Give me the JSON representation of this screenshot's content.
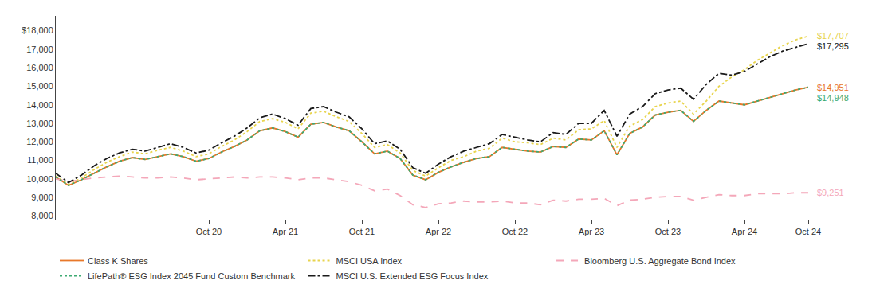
{
  "chart_data": {
    "type": "line",
    "categories": [
      null,
      null,
      null,
      null,
      null,
      null,
      null,
      null,
      null,
      null,
      null,
      null,
      "Oct 20",
      null,
      null,
      null,
      null,
      null,
      "Apr 21",
      null,
      null,
      null,
      null,
      null,
      "Oct 21",
      null,
      null,
      null,
      null,
      null,
      "Apr 22",
      null,
      null,
      null,
      null,
      null,
      "Oct 22",
      null,
      null,
      null,
      null,
      null,
      "Apr 23",
      null,
      null,
      null,
      null,
      null,
      "Oct 23",
      null,
      null,
      null,
      null,
      null,
      "Apr 24",
      null,
      null,
      null,
      null,
      "Oct 24"
    ],
    "series": [
      {
        "name": "Class K Shares",
        "color": "#E8782A",
        "line_style": "solid",
        "values": [
          10100,
          9650,
          9950,
          10300,
          10650,
          10950,
          11150,
          11050,
          11200,
          11350,
          11200,
          10950,
          11100,
          11450,
          11750,
          12100,
          12600,
          12750,
          12550,
          12250,
          12950,
          13050,
          12800,
          12600,
          12000,
          11350,
          11500,
          11100,
          10200,
          9950,
          10350,
          10650,
          10900,
          11100,
          11200,
          11700,
          11600,
          11500,
          11450,
          11750,
          11700,
          12150,
          12100,
          12600,
          11300,
          12450,
          12800,
          13450,
          13600,
          13700,
          13100,
          13700,
          14200,
          14100,
          14000,
          14200,
          14400,
          14600,
          14800,
          14951
        ]
      },
      {
        "name": "MSCI USA Index",
        "color": "#E8D44D",
        "line_style": "dotted",
        "values": [
          10150,
          9700,
          10050,
          10500,
          10900,
          11200,
          11450,
          11350,
          11550,
          11700,
          11500,
          11200,
          11350,
          11750,
          12100,
          12550,
          13100,
          13250,
          13050,
          12700,
          13550,
          13650,
          13350,
          13100,
          12450,
          11700,
          11850,
          11400,
          10450,
          10150,
          10600,
          11000,
          11200,
          11500,
          11650,
          12200,
          12000,
          11950,
          11850,
          12200,
          12100,
          12650,
          12700,
          13150,
          11700,
          12850,
          13200,
          13900,
          14100,
          14200,
          13500,
          14200,
          15000,
          15500,
          15900,
          16400,
          16800,
          17200,
          17500,
          17707
        ]
      },
      {
        "name": "Bloomberg U.S. Aggregate Bond Index",
        "color": "#F4A7B9",
        "line_style": "dashed",
        "values": [
          10000,
          9850,
          9950,
          10050,
          10100,
          10150,
          10100,
          10050,
          10050,
          10100,
          10050,
          9950,
          10000,
          10050,
          10100,
          10050,
          10100,
          10100,
          10050,
          9950,
          10050,
          10050,
          9950,
          9850,
          9650,
          9350,
          9450,
          9100,
          8600,
          8450,
          8650,
          8700,
          8800,
          8750,
          8750,
          8800,
          8700,
          8700,
          8600,
          8850,
          8800,
          8900,
          8900,
          8950,
          8550,
          8850,
          8900,
          9000,
          9050,
          9050,
          8850,
          9000,
          9150,
          9100,
          9100,
          9200,
          9200,
          9200,
          9250,
          9251
        ]
      },
      {
        "name": "LifePath® ESG Index 2045 Fund Custom Benchmark",
        "color": "#3DAA72",
        "line_style": "dotted",
        "values": [
          10100,
          9650,
          9950,
          10300,
          10650,
          10950,
          11150,
          11050,
          11200,
          11350,
          11200,
          10950,
          11100,
          11450,
          11750,
          12100,
          12600,
          12750,
          12550,
          12250,
          12950,
          13050,
          12800,
          12600,
          12000,
          11350,
          11500,
          11100,
          10200,
          9950,
          10350,
          10650,
          10900,
          11100,
          11200,
          11700,
          11600,
          11500,
          11450,
          11750,
          11700,
          12150,
          12100,
          12600,
          11300,
          12450,
          12800,
          13450,
          13600,
          13700,
          13100,
          13700,
          14200,
          14100,
          14000,
          14200,
          14400,
          14600,
          14800,
          14948
        ]
      },
      {
        "name": "MSCI U.S. Extended ESG Focus Index",
        "color": "#1A1A1A",
        "line_style": "dashdot",
        "values": [
          10300,
          9800,
          10200,
          10700,
          11100,
          11400,
          11600,
          11500,
          11700,
          11900,
          11700,
          11400,
          11550,
          11950,
          12300,
          12750,
          13300,
          13500,
          13250,
          12900,
          13800,
          13900,
          13600,
          13350,
          12700,
          11900,
          12050,
          11600,
          10600,
          10300,
          10800,
          11200,
          11500,
          11700,
          11900,
          12400,
          12250,
          12100,
          12000,
          12500,
          12400,
          13000,
          13000,
          13700,
          12300,
          13500,
          13900,
          14600,
          14800,
          14900,
          14300,
          15100,
          15700,
          15600,
          15800,
          16200,
          16600,
          16900,
          17100,
          17295
        ]
      }
    ],
    "annotations": [
      {
        "text": "$17,707",
        "y": 17707,
        "color": "#E8D44D"
      },
      {
        "text": "$17,295",
        "y": 17295,
        "color": "#1A1A1A"
      },
      {
        "text": "$14,951",
        "y": 14951,
        "color": "#E8782A"
      },
      {
        "text": "$14,948",
        "y": 14948,
        "color": "#3DAA72"
      },
      {
        "text": "$9,251",
        "y": 9251,
        "color": "#F4A7B9"
      }
    ],
    "ylim": [
      7800,
      18800
    ],
    "yticks": [
      {
        "value": 8000,
        "label": "8,000"
      },
      {
        "value": 9000,
        "label": "9,000"
      },
      {
        "value": 10000,
        "label": "10,000"
      },
      {
        "value": 11000,
        "label": "11,000"
      },
      {
        "value": 12000,
        "label": "12,000"
      },
      {
        "value": 13000,
        "label": "13,000"
      },
      {
        "value": 14000,
        "label": "14,000"
      },
      {
        "value": 15000,
        "label": "15,000"
      },
      {
        "value": 16000,
        "label": "16,000"
      },
      {
        "value": 17000,
        "label": "17,000"
      },
      {
        "value": 18000,
        "label": "$18,000"
      }
    ],
    "grid": false,
    "legend": "bottom"
  }
}
